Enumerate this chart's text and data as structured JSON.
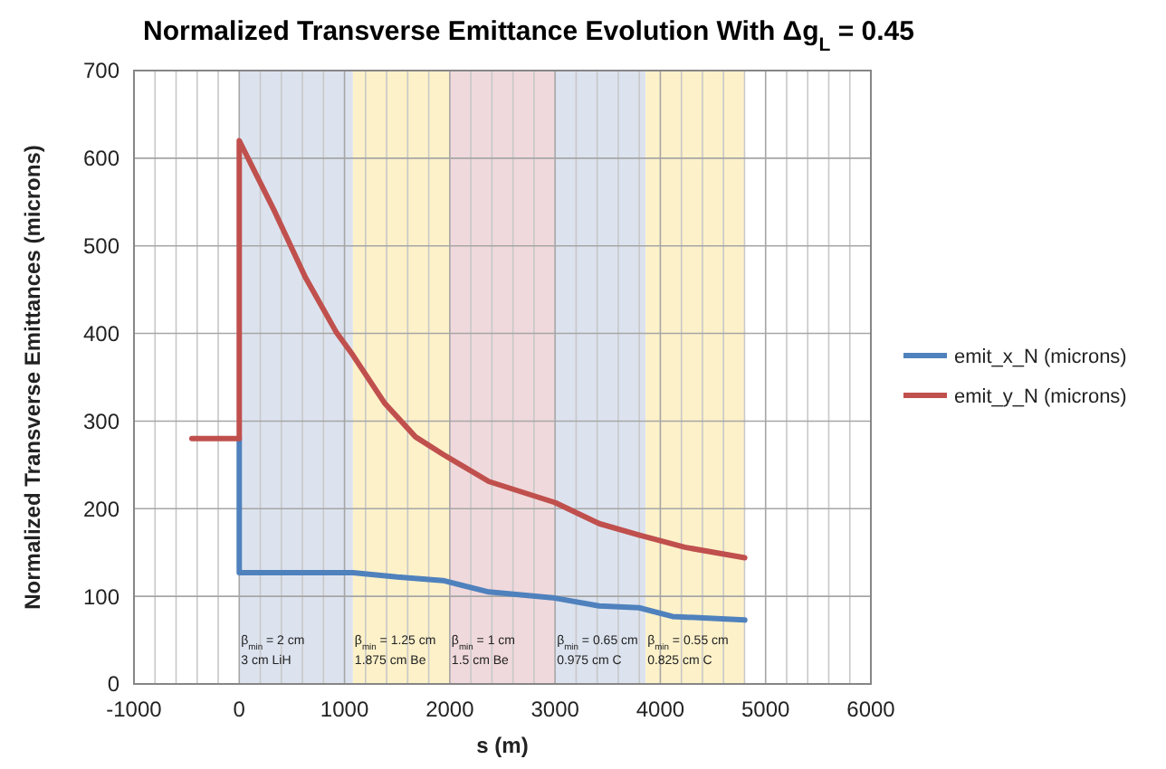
{
  "chart_data": {
    "type": "line",
    "title": "Normalized Transverse Emittance Evolution With Δg$_{L}$ = 0.45",
    "xlabel": "s (m)",
    "ylabel": "Normalized  Transverse Emittances (microns)",
    "xlim": [
      -1000,
      6000
    ],
    "ylim": [
      0,
      700
    ],
    "xticks": [
      -1000,
      {
        "value": -800,
        "label": null
      },
      {
        "value": -600,
        "label": null
      },
      {
        "value": -400,
        "label": null
      },
      {
        "value": -200,
        "label": null
      },
      0,
      {
        "value": 200,
        "label": null
      },
      {
        "value": 400,
        "label": null
      },
      {
        "value": 600,
        "label": null
      },
      {
        "value": 800,
        "label": null
      },
      1000,
      {
        "value": 1200,
        "label": null
      },
      {
        "value": 1400,
        "label": null
      },
      {
        "value": 1600,
        "label": null
      },
      {
        "value": 1800,
        "label": null
      },
      2000,
      {
        "value": 2200,
        "label": null
      },
      {
        "value": 2400,
        "label": null
      },
      {
        "value": 2600,
        "label": null
      },
      {
        "value": 2800,
        "label": null
      },
      3000,
      {
        "value": 3200,
        "label": null
      },
      {
        "value": 3400,
        "label": null
      },
      {
        "value": 3600,
        "label": null
      },
      {
        "value": 3800,
        "label": null
      },
      4000,
      {
        "value": 4200,
        "label": null
      },
      {
        "value": 4400,
        "label": null
      },
      {
        "value": 4600,
        "label": null
      },
      {
        "value": 4800,
        "label": null
      },
      5000,
      {
        "value": 5200,
        "label": null
      },
      {
        "value": 5400,
        "label": null
      },
      {
        "value": 5600,
        "label": null
      },
      {
        "value": 5800,
        "label": null
      },
      6000
    ],
    "yticks": [
      0,
      100,
      200,
      300,
      400,
      500,
      600,
      700
    ],
    "grid": true,
    "legend": "right",
    "marker": "none",
    "line_style": "solid",
    "bands": [
      {
        "axis": "x",
        "from": 0,
        "to": 1080,
        "color": "#dce3ef",
        "label": "β$_{min}$ = 2 cm\n3 cm LiH"
      },
      {
        "axis": "x",
        "from": 1080,
        "to": 2000,
        "color": "#fdf1c9",
        "label": "β$_{min}$ = 1.25 cm\n1.875 cm Be"
      },
      {
        "axis": "x",
        "from": 2000,
        "to": 3000,
        "color": "#f0d9dc",
        "label": "β$_{min}$ = 1 cm\n1.5 cm Be"
      },
      {
        "axis": "x",
        "from": 3000,
        "to": 3860,
        "color": "#dce3ef",
        "label": "β$_{min}$ = 0.65 cm\n0.975 cm C"
      },
      {
        "axis": "x",
        "from": 3860,
        "to": 4800,
        "color": "#fdf1c9",
        "label": "β$_{min}$ = 0.55 cm\n0.825 cm C"
      }
    ],
    "series": [
      {
        "name": "emit_x_N (microns)",
        "color": "#4f81bd",
        "x": [
          0,
          0,
          1080,
          1500,
          1936,
          2372,
          3000,
          3419,
          3797,
          4116,
          4802
        ],
        "values": [
          280,
          127,
          127,
          122,
          118,
          105,
          98,
          89,
          87,
          77,
          73
        ]
      },
      {
        "name": "emit_y_N (microns)",
        "color": "#c0504d",
        "x": [
          -450,
          0,
          0,
          337,
          628,
          919,
          1081,
          1384,
          1674,
          1936,
          2372,
          3000,
          3419,
          3797,
          4233,
          4802
        ],
        "values": [
          280,
          280,
          620,
          539,
          464,
          402,
          375,
          320,
          282,
          262,
          231,
          207,
          183,
          170,
          156,
          144
        ]
      }
    ]
  }
}
